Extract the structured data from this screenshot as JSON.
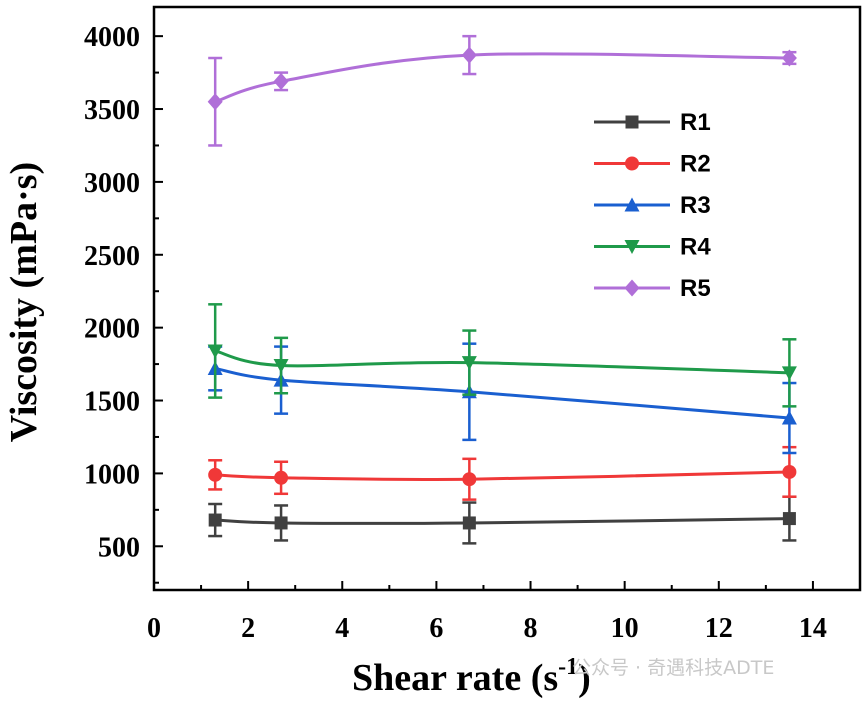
{
  "watermark": "公众号 · 奇遇科技ADTE",
  "chart_data": {
    "type": "line",
    "xlabel": "Shear rate (s",
    "xlabel_sup": "-1",
    "xlabel_tail": ")",
    "ylabel": "Viscosity (mPa·s)",
    "xlim": [
      0,
      15
    ],
    "ylim": [
      200,
      4200
    ],
    "xticks": [
      0,
      2,
      4,
      6,
      8,
      10,
      12,
      14
    ],
    "yticks": [
      500,
      1000,
      1500,
      2000,
      2500,
      3000,
      3500,
      4000
    ],
    "legend_position": "right-top",
    "x": [
      1.3,
      2.7,
      6.7,
      13.5
    ],
    "series": [
      {
        "name": "R1",
        "color": "#404040",
        "marker": "square",
        "values": [
          680,
          660,
          660,
          690
        ],
        "errors": [
          110,
          120,
          140,
          150
        ]
      },
      {
        "name": "R2",
        "color": "#f03838",
        "marker": "circle",
        "values": [
          990,
          970,
          960,
          1010
        ],
        "errors": [
          100,
          110,
          140,
          170
        ]
      },
      {
        "name": "R3",
        "color": "#1a5fd0",
        "marker": "triangle-up",
        "values": [
          1720,
          1640,
          1560,
          1380
        ],
        "errors": [
          150,
          230,
          330,
          240
        ]
      },
      {
        "name": "R4",
        "color": "#1f9a4a",
        "marker": "triangle-down",
        "values": [
          1840,
          1740,
          1760,
          1690
        ],
        "errors": [
          320,
          190,
          220,
          230
        ]
      },
      {
        "name": "R5",
        "color": "#b06fd8",
        "marker": "diamond",
        "values": [
          3550,
          3690,
          3870,
          3850
        ],
        "errors": [
          300,
          60,
          130,
          40
        ]
      }
    ]
  }
}
